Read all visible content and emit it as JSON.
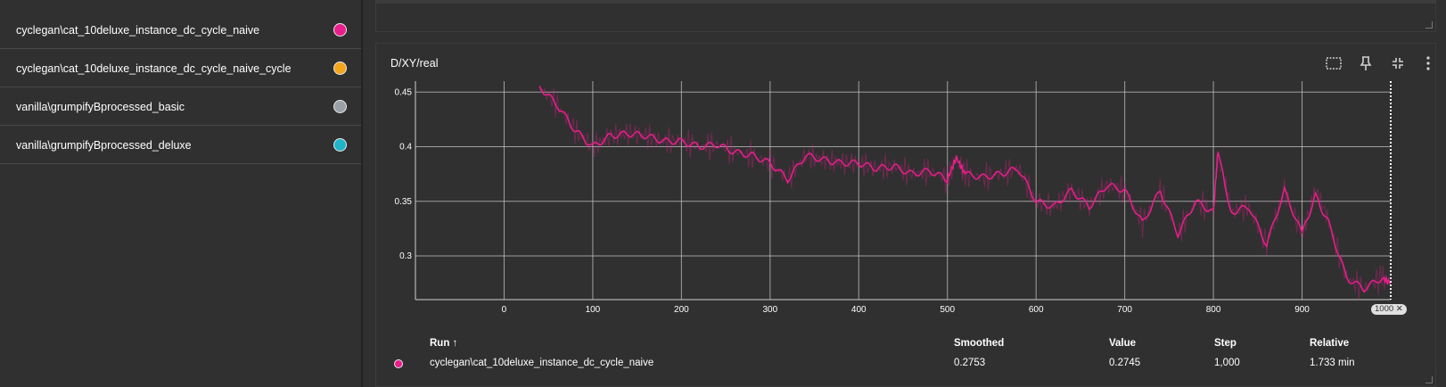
{
  "runs": [
    {
      "label": "cyclegan\\cat_10deluxe_instance_dc_cycle_naive",
      "color": "#e91e8c"
    },
    {
      "label": "cyclegan\\cat_10deluxe_instance_dc_cycle_naive_cycle",
      "color": "#f4a51c"
    },
    {
      "label": "vanilla\\grumpifyBprocessed_basic",
      "color": "#9aa0a6"
    },
    {
      "label": "vanilla\\grumpifyBprocessed_deluxe",
      "color": "#21b4c8"
    }
  ],
  "card": {
    "title": "D/XY/real",
    "icons": [
      "fit-domain-icon",
      "pin-icon",
      "collapse-icon",
      "more-vert-icon"
    ]
  },
  "chart_data": {
    "type": "line",
    "title": "D/XY/real",
    "xlim": [
      -100,
      1000
    ],
    "ylim": [
      0.26,
      0.46
    ],
    "x_ticks": [
      0,
      100,
      200,
      300,
      400,
      500,
      600,
      700,
      800,
      900
    ],
    "y_ticks": [
      0.3,
      0.35,
      0.4,
      0.45
    ],
    "y_tick_labels": [
      "0.3",
      "0.35",
      "0.4",
      "0.45"
    ],
    "grid": true,
    "cursor_step": "1000",
    "series": [
      {
        "name": "cyclegan\\cat_10deluxe_instance_dc_cycle_naive",
        "color": "#e91e8c",
        "x": [
          40,
          60,
          80,
          100,
          120,
          140,
          160,
          180,
          200,
          220,
          240,
          260,
          280,
          300,
          320,
          340,
          360,
          380,
          400,
          420,
          440,
          460,
          480,
          500,
          510,
          520,
          540,
          560,
          580,
          600,
          620,
          640,
          660,
          680,
          700,
          720,
          740,
          760,
          780,
          800,
          805,
          820,
          840,
          860,
          880,
          900,
          915,
          930,
          950,
          970,
          990,
          1000
        ],
        "values": [
          0.455,
          0.438,
          0.415,
          0.4,
          0.41,
          0.412,
          0.41,
          0.405,
          0.405,
          0.4,
          0.402,
          0.395,
          0.392,
          0.385,
          0.37,
          0.392,
          0.388,
          0.385,
          0.385,
          0.38,
          0.382,
          0.375,
          0.378,
          0.37,
          0.39,
          0.375,
          0.372,
          0.375,
          0.38,
          0.35,
          0.345,
          0.36,
          0.345,
          0.365,
          0.36,
          0.33,
          0.36,
          0.32,
          0.35,
          0.34,
          0.395,
          0.34,
          0.345,
          0.31,
          0.36,
          0.32,
          0.355,
          0.33,
          0.28,
          0.27,
          0.28,
          0.275
        ]
      }
    ]
  },
  "table": {
    "headers": {
      "run": "Run ↑",
      "smoothed": "Smoothed",
      "value": "Value",
      "step": "Step",
      "relative": "Relative"
    },
    "rows": [
      {
        "run": "cyclegan\\cat_10deluxe_instance_dc_cycle_naive",
        "smoothed": "0.2753",
        "value": "0.2745",
        "step": "1,000",
        "relative": "1.733 min",
        "color": "#e91e8c"
      }
    ]
  }
}
